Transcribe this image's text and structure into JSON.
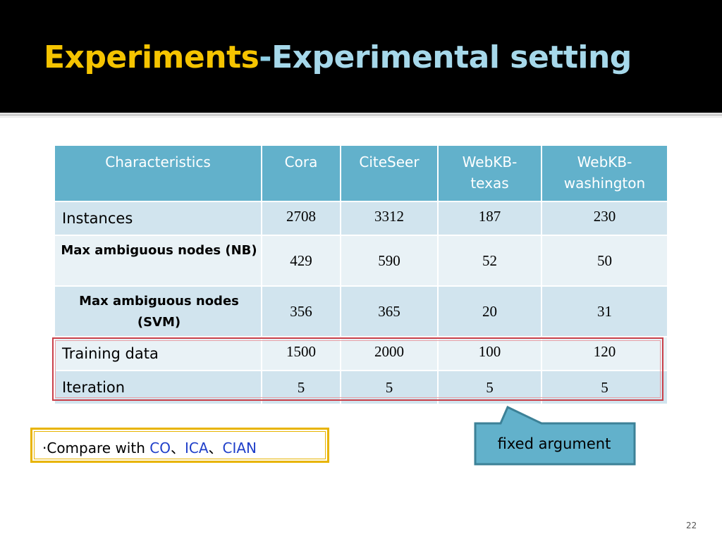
{
  "slide": {
    "title_part1": "Experiments",
    "title_sep": "-",
    "title_part2": "Experimental setting",
    "page_number": "22"
  },
  "table": {
    "headers": [
      "Characteristics",
      "Cora",
      "CiteSeer",
      "WebKB-\ntexas",
      "WebKB-\nwashington"
    ],
    "rows": [
      {
        "label": "Instances",
        "values": [
          "2708",
          "3312",
          "187",
          "230"
        ]
      },
      {
        "label": "Max ambiguous nodes (NB)",
        "values": [
          "429",
          "590",
          "52",
          "50"
        ]
      },
      {
        "label": "Max ambiguous nodes (SVM)",
        "values": [
          "356",
          "365",
          "20",
          "31"
        ]
      },
      {
        "label": "Training data",
        "values": [
          "1500",
          "2000",
          "100",
          "120"
        ]
      },
      {
        "label": "Iteration",
        "values": [
          "5",
          "5",
          "5",
          "5"
        ]
      }
    ]
  },
  "compare": {
    "bullet": "‧",
    "prefix": "Compare with ",
    "m1": "CO",
    "sep1": "、",
    "m2": "ICA",
    "sep2": "、",
    "m3": "CIAN"
  },
  "callout": {
    "label": "fixed argument"
  },
  "colors": {
    "title_accent": "#f5c400",
    "title_secondary": "#a6d8ea",
    "header_bg": "#62b1cb",
    "highlight_border": "#c9404a",
    "compare_border": "#e8b400",
    "callout_fill": "#62b1cb"
  }
}
